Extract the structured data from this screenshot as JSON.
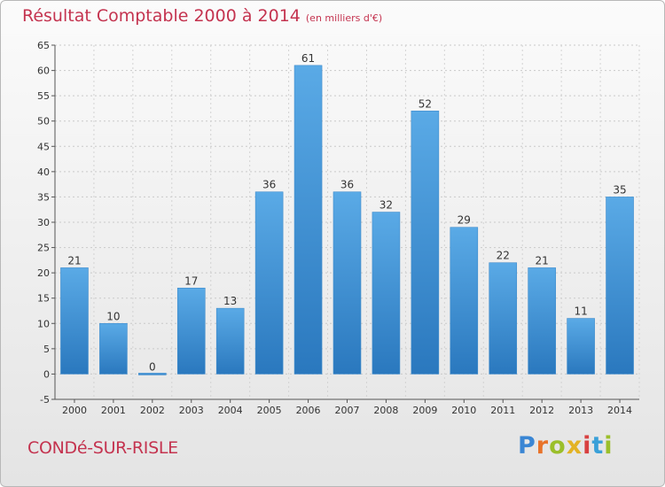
{
  "header": {
    "title": "Résultat Comptable 2000 à 2014",
    "subtitle": "(en milliers d'€)"
  },
  "footer": {
    "commune": "CONDé-SUR-RISLE",
    "logo_letters": [
      "P",
      "r",
      "o",
      "x",
      "i",
      "t",
      "i"
    ]
  },
  "colors": {
    "accent": "#c4334f",
    "bar_top": "#5aaae6",
    "bar_bottom": "#2a78be"
  },
  "chart_data": {
    "type": "bar",
    "title": "Résultat Comptable 2000 à 2014",
    "subtitle": "(en milliers d'€)",
    "categories": [
      "2000",
      "2001",
      "2002",
      "2003",
      "2004",
      "2005",
      "2006",
      "2007",
      "2008",
      "2009",
      "2010",
      "2011",
      "2012",
      "2013",
      "2014"
    ],
    "values": [
      21,
      10,
      0,
      17,
      13,
      36,
      61,
      36,
      32,
      52,
      29,
      22,
      21,
      11,
      35
    ],
    "ylim": [
      -5,
      65
    ],
    "yticks": [
      -5,
      0,
      5,
      10,
      15,
      20,
      25,
      30,
      35,
      40,
      45,
      50,
      55,
      60,
      65
    ],
    "grid": true,
    "legend": "none"
  }
}
